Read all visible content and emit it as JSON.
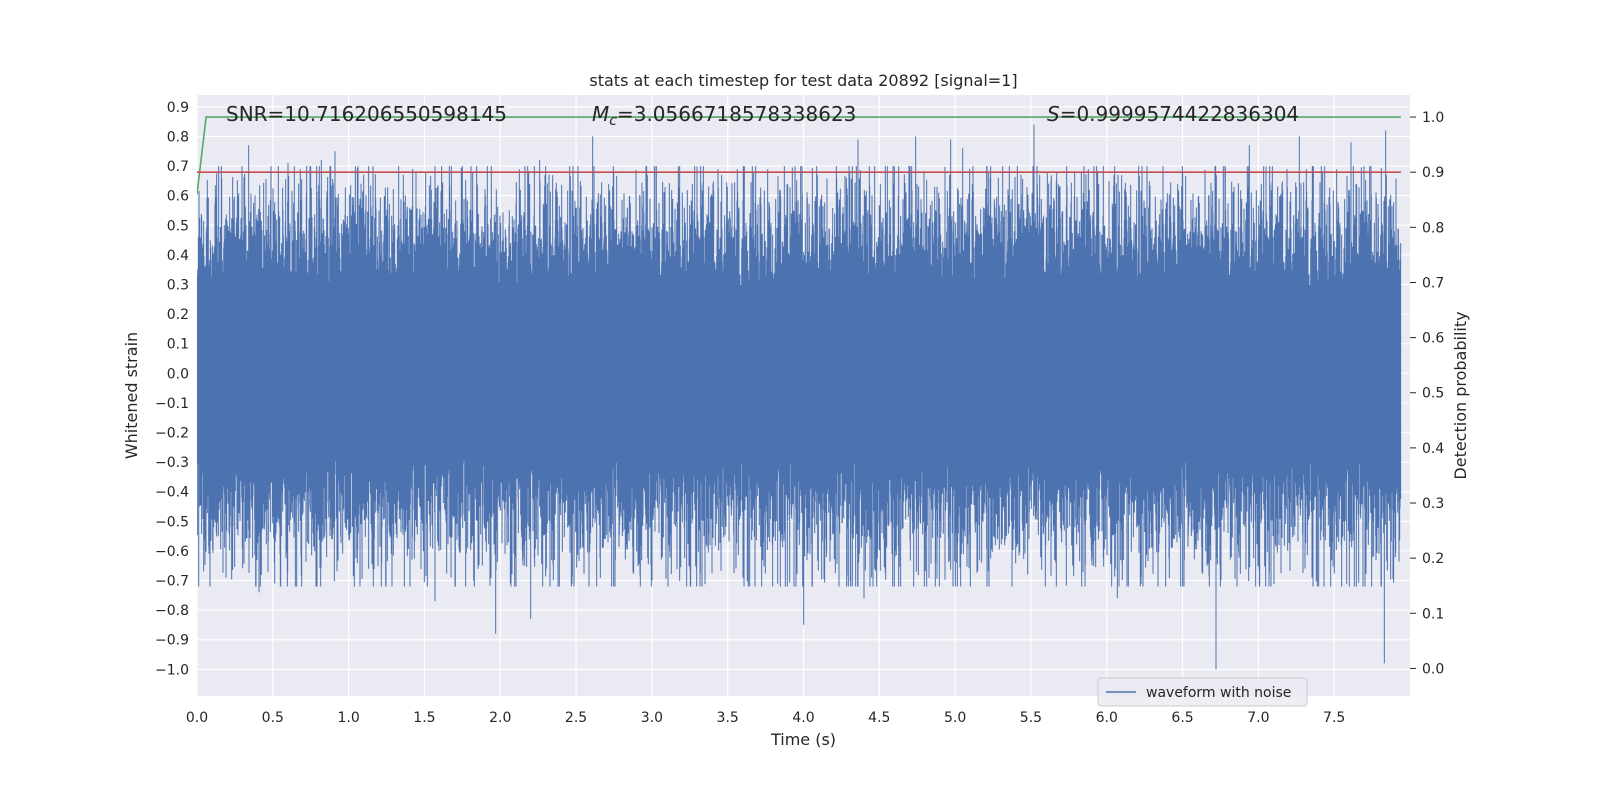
{
  "chart_data": {
    "type": "line",
    "title": "stats at each timestep for test data 20892 [signal=1]",
    "xlabel": "Time (s)",
    "ylabel": "Whitened strain",
    "y2label": "Detection probability",
    "xlim": [
      0.0,
      8.0
    ],
    "ylim": [
      -1.09,
      0.94
    ],
    "y2lim": [
      -0.05,
      1.04
    ],
    "xticks": [
      "0.0",
      "0.5",
      "1.0",
      "1.5",
      "2.0",
      "2.5",
      "3.0",
      "3.5",
      "4.0",
      "4.5",
      "5.0",
      "5.5",
      "6.0",
      "6.5",
      "7.0",
      "7.5"
    ],
    "yticks": [
      "0.9",
      "0.8",
      "0.7",
      "0.6",
      "0.5",
      "0.4",
      "0.3",
      "0.2",
      "0.1",
      "0.0",
      "−0.1",
      "−0.2",
      "−0.3",
      "−0.4",
      "−0.5",
      "−0.6",
      "−0.7",
      "−0.8",
      "−0.9",
      "−1.0"
    ],
    "y2ticks": [
      "1.0",
      "0.9",
      "0.8",
      "0.7",
      "0.6",
      "0.5",
      "0.4",
      "0.3",
      "0.2",
      "0.1",
      "0.0"
    ],
    "grid": true,
    "legend_placement": "lower-right",
    "annotations": {
      "snr": "SNR=10.716206550598145",
      "mc_symbol": "M",
      "mc_sub": "c",
      "mc_value": "=3.0566718578338623",
      "s_symbol": "S",
      "s_value": "=0.9999574422836304"
    },
    "series": [
      {
        "name": "waveform with noise",
        "axis": "left",
        "color": "#4c72b0",
        "sample_rate_hz": 2048,
        "envelope": {
          "core_amplitude": 0.28,
          "typical_peak": 0.5,
          "max": 0.85,
          "min": -1.0
        },
        "spikes_max": [
          [
            0.34,
            0.77
          ],
          [
            0.6,
            0.71
          ],
          [
            0.82,
            0.72
          ],
          [
            0.91,
            0.75
          ],
          [
            1.36,
            0.67
          ],
          [
            2.26,
            0.72
          ],
          [
            2.61,
            0.8
          ],
          [
            3.46,
            0.67
          ],
          [
            4.36,
            0.79
          ],
          [
            4.74,
            0.8
          ],
          [
            4.97,
            0.79
          ],
          [
            5.05,
            0.76
          ],
          [
            5.52,
            0.84
          ],
          [
            6.94,
            0.77
          ],
          [
            7.27,
            0.8
          ],
          [
            7.61,
            0.78
          ],
          [
            7.84,
            0.82
          ]
        ],
        "spikes_min": [
          [
            0.41,
            -0.74
          ],
          [
            1.57,
            -0.77
          ],
          [
            1.97,
            -0.88
          ],
          [
            2.2,
            -0.83
          ],
          [
            4.0,
            -0.85
          ],
          [
            4.4,
            -0.76
          ],
          [
            6.07,
            -0.76
          ],
          [
            6.72,
            -1.0
          ],
          [
            7.83,
            -0.98
          ]
        ]
      },
      {
        "name": "",
        "axis": "right",
        "color": "#55a868",
        "x": [
          0.0,
          0.06,
          0.5,
          1.0,
          2.0,
          3.0,
          4.0,
          5.0,
          6.0,
          7.0,
          7.94
        ],
        "y": [
          0.86,
          1.0,
          1.0,
          1.0,
          1.0,
          1.0,
          1.0,
          1.0,
          1.0,
          1.0,
          1.0
        ]
      },
      {
        "name": "",
        "axis": "right",
        "color": "#c44e52",
        "x": [
          0.0,
          7.94
        ],
        "y": [
          0.9,
          0.9
        ]
      }
    ]
  }
}
